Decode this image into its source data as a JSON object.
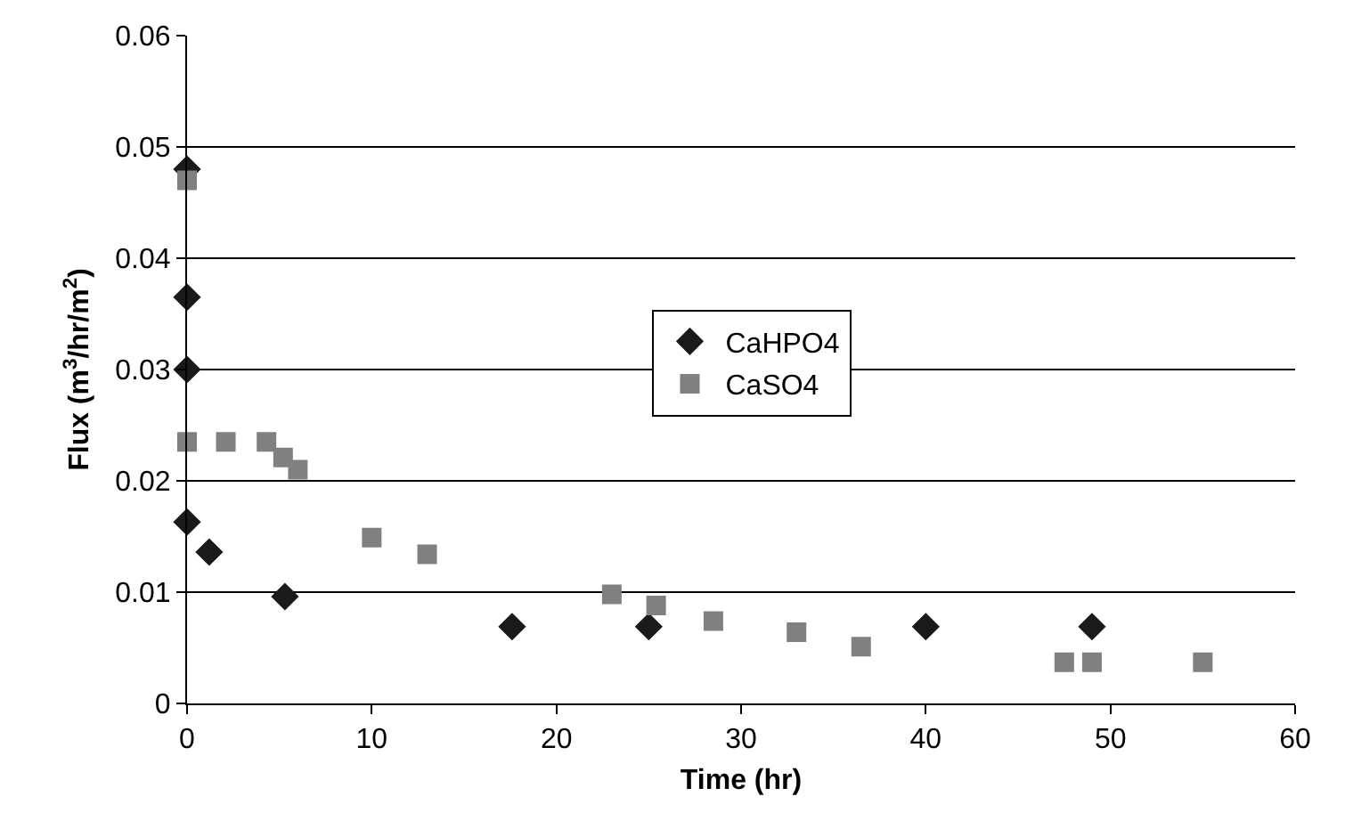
{
  "chart_data": {
    "type": "scatter",
    "xlabel": "Time (hr)",
    "ylabel": "Flux (m$^{3}$/hr/m$^{2}$)",
    "xlim": [
      0,
      60
    ],
    "xticks": [
      0,
      10,
      20,
      30,
      40,
      50,
      60
    ],
    "ylim": [
      0,
      0.06
    ],
    "yticks": [
      0,
      0.01,
      0.02,
      0.03,
      0.04,
      0.05,
      0.06
    ],
    "grid": "y",
    "legend": "center",
    "series": [
      {
        "name": "CaHPO4",
        "color": "#1a1a1a",
        "marker": "diamond",
        "x": [
          0,
          0,
          0,
          0,
          1.2,
          5.3,
          17.6,
          25,
          40,
          49
        ],
        "values": [
          0.048,
          0.0365,
          0.03,
          0.0163,
          0.0136,
          0.0096,
          0.0069,
          0.0069,
          0.0069,
          0.0069
        ]
      },
      {
        "name": "CaSO4",
        "color": "#808080",
        "marker": "square",
        "x": [
          0,
          0,
          2.1,
          4.3,
          5.2,
          6,
          10,
          13,
          23,
          25.4,
          28.5,
          33,
          36.5,
          47.5,
          49,
          55
        ],
        "values": [
          0.047,
          0.0235,
          0.0235,
          0.0235,
          0.0221,
          0.021,
          0.0149,
          0.0134,
          0.0098,
          0.0088,
          0.0074,
          0.0064,
          0.0051,
          0.0037,
          0.0037,
          0.0037
        ]
      }
    ]
  }
}
